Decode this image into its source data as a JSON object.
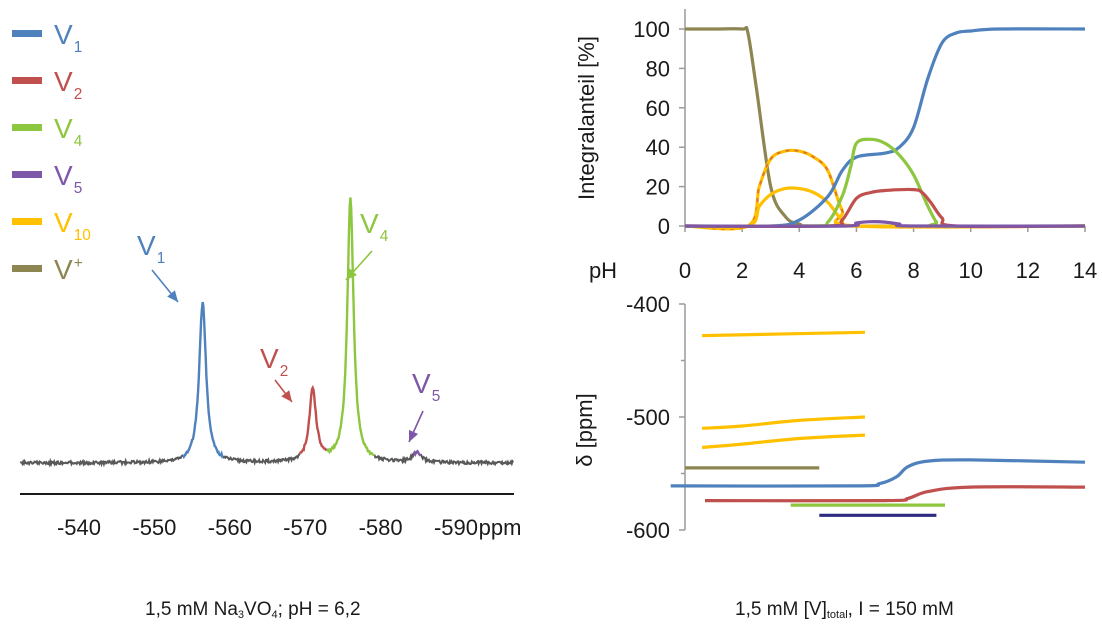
{
  "colors": {
    "V1": "#4f81bd",
    "V2": "#c0504d",
    "V4": "#8dc63f",
    "V5": "#7e57a8",
    "V10": "#ffc000",
    "Vplus": "#8d8652",
    "baseline": "#595959",
    "V5_shift": "#2e2a80",
    "V10_overlay": "#e0752d"
  },
  "legend": [
    {
      "base": "V",
      "sub": "1",
      "sup": "",
      "color_key": "V1"
    },
    {
      "base": "V",
      "sub": "2",
      "sup": "",
      "color_key": "V2"
    },
    {
      "base": "V",
      "sub": "4",
      "sup": "",
      "color_key": "V4"
    },
    {
      "base": "V",
      "sub": "5",
      "sup": "",
      "color_key": "V5"
    },
    {
      "base": "V",
      "sub": "10",
      "sup": "",
      "color_key": "V10"
    },
    {
      "base": "V",
      "sub": "",
      "sup": "+",
      "color_key": "Vplus"
    }
  ],
  "captions": {
    "left_pre": "1,5 mM Na",
    "left_sub1": "3",
    "left_mid": "VO",
    "left_sub2": "4",
    "left_post": "; pH = 6,2",
    "right_pre": "1,5 mM [V]",
    "right_sub": "total",
    "right_post": ", I = 150 mM"
  },
  "chart_data": [
    {
      "type": "line",
      "name": "spectrum",
      "xlabel": "ppm",
      "x_reversed": true,
      "xlim": [
        -532,
        -599
      ],
      "xticks": [
        -540,
        -550,
        -560,
        -570,
        -580,
        -590
      ],
      "peaks": [
        {
          "label_base": "V",
          "label_sub": "1",
          "color_key": "V1",
          "position": -556.4,
          "height": 1.0,
          "width": 0.55
        },
        {
          "label_base": "V",
          "label_sub": "2",
          "color_key": "V2",
          "position": -571.0,
          "height": 0.45,
          "width": 0.55
        },
        {
          "label_base": "V",
          "label_sub": "4",
          "color_key": "V4",
          "position": -576.0,
          "height": 1.65,
          "width": 0.5
        },
        {
          "label_base": "V",
          "label_sub": "5",
          "color_key": "V5",
          "position": -584.8,
          "height": 0.06,
          "width": 0.7
        }
      ]
    },
    {
      "type": "line",
      "name": "distribution",
      "ylabel": "Integralanteil [%]",
      "xlabel": "pH",
      "xlim": [
        0,
        14
      ],
      "ylim": [
        0,
        100
      ],
      "xticks": [
        0,
        2,
        4,
        6,
        8,
        10,
        12,
        14
      ],
      "yticks": [
        0,
        20,
        40,
        60,
        80,
        100
      ],
      "series": [
        {
          "color_key": "Vplus",
          "x": [
            0,
            1,
            2,
            2.2,
            2.5,
            3,
            3.5,
            4,
            5,
            14
          ],
          "y": [
            100,
            100,
            100,
            98,
            70,
            20,
            5,
            1,
            0,
            0
          ]
        },
        {
          "color_key": "V10",
          "x": [
            0,
            2.2,
            2.6,
            3,
            3.5,
            4,
            4.5,
            5,
            5.5,
            6,
            14
          ],
          "y": [
            0,
            0,
            20,
            34,
            38,
            38,
            35,
            28,
            8,
            0,
            0
          ]
        },
        {
          "color_key": "V10",
          "x": [
            0,
            2.2,
            2.6,
            3,
            3.5,
            4,
            4.5,
            5,
            5.5,
            6,
            14
          ],
          "y": [
            0,
            0,
            10,
            16,
            19,
            19,
            17,
            12,
            3,
            0,
            0
          ]
        },
        {
          "color_key": "V1",
          "x": [
            0,
            3,
            4,
            5,
            5.5,
            6,
            7,
            7.5,
            8,
            8.5,
            9,
            9.5,
            10,
            11,
            14
          ],
          "y": [
            0,
            0,
            3,
            15,
            28,
            35,
            37,
            40,
            50,
            75,
            93,
            98,
            99,
            100,
            100
          ]
        },
        {
          "color_key": "V4",
          "x": [
            0,
            4.5,
            5,
            5.5,
            5.8,
            6,
            6.5,
            7,
            7.5,
            8,
            8.5,
            8.8,
            9,
            14
          ],
          "y": [
            0,
            0,
            2,
            15,
            30,
            42,
            44,
            42,
            36,
            26,
            10,
            2,
            0,
            0
          ]
        },
        {
          "color_key": "V2",
          "x": [
            0,
            5,
            5.5,
            6,
            6.5,
            7,
            8,
            8.3,
            8.6,
            9,
            9.5,
            14
          ],
          "y": [
            0,
            0,
            3,
            14,
            17,
            18,
            18.5,
            17,
            12,
            4,
            0,
            0
          ]
        },
        {
          "color_key": "V5",
          "x": [
            0,
            5.5,
            6,
            6.5,
            7,
            7.5,
            8,
            14
          ],
          "y": [
            0,
            0,
            1.5,
            2.2,
            2,
            1,
            0,
            0
          ]
        }
      ]
    },
    {
      "type": "line",
      "name": "shift",
      "ylabel": "δ [ppm]",
      "xlim": [
        0,
        14
      ],
      "ylim": [
        -600,
        -400
      ],
      "yticks": [
        -400,
        -500,
        -600
      ],
      "series": [
        {
          "color_key": "V10",
          "x": [
            0.6,
            6.3
          ],
          "y": [
            -428,
            -425
          ]
        },
        {
          "color_key": "V10",
          "x": [
            0.6,
            2.0,
            4.0,
            6.3
          ],
          "y": [
            -510,
            -508,
            -503,
            -500
          ]
        },
        {
          "color_key": "V10",
          "x": [
            0.6,
            2.0,
            4.0,
            6.3
          ],
          "y": [
            -527,
            -524,
            -519,
            -516
          ]
        },
        {
          "color_key": "Vplus",
          "x": [
            0,
            4.7
          ],
          "y": [
            -545,
            -545
          ]
        },
        {
          "color_key": "V1",
          "x": [
            -0.5,
            6,
            6.8,
            7.4,
            7.8,
            8.5,
            10,
            14
          ],
          "y": [
            -561,
            -561,
            -559,
            -553,
            -544,
            -539,
            -538,
            -540
          ]
        },
        {
          "color_key": "V2",
          "x": [
            0.7,
            7,
            7.8,
            8.5,
            10,
            14
          ],
          "y": [
            -574,
            -574,
            -572,
            -566,
            -562,
            -562
          ]
        },
        {
          "color_key": "V4",
          "x": [
            3.7,
            9.1
          ],
          "y": [
            -578,
            -578
          ]
        },
        {
          "color_key": "V5_shift",
          "x": [
            4.7,
            8.8
          ],
          "y": [
            -587,
            -587
          ]
        }
      ]
    }
  ]
}
